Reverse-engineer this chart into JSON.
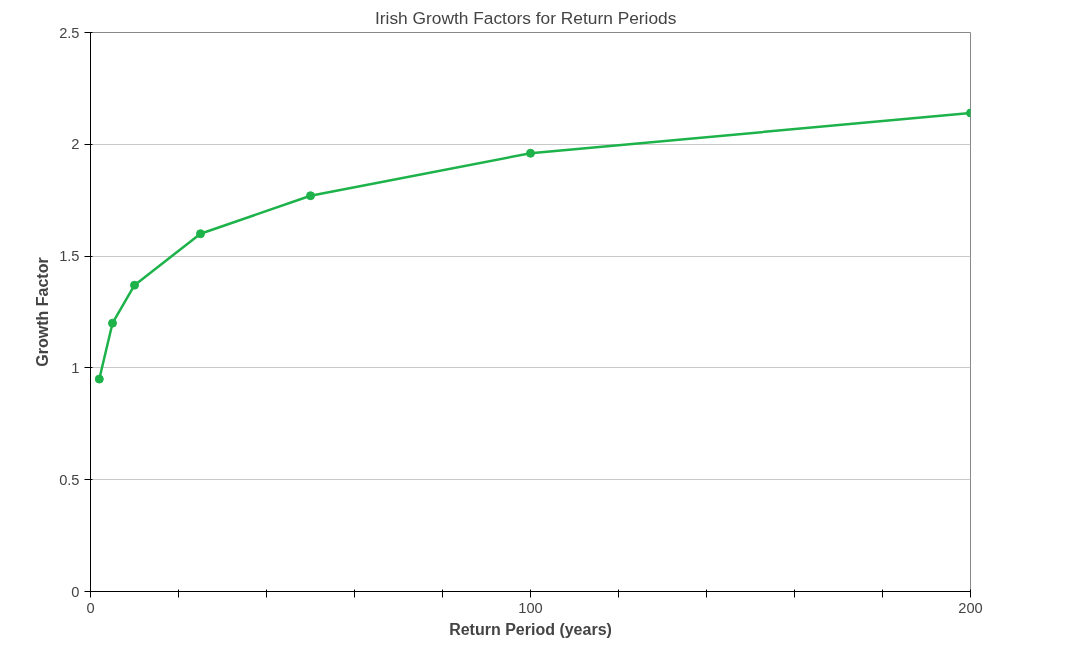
{
  "chart_data": {
    "type": "line",
    "title": "Irish Growth Factors  for  Return Periods",
    "xlabel": "Return Period (years)",
    "ylabel": "Growth Factor",
    "x": [
      2,
      5,
      10,
      25,
      50,
      100,
      200
    ],
    "series": [
      {
        "color": "#1db34a",
        "values": [
          0.95,
          1.2,
          1.37,
          1.6,
          1.77,
          1.96,
          2.14
        ]
      }
    ],
    "xlim": [
      0,
      200
    ],
    "xticks": [
      0,
      {
        "value": 20,
        "label": null
      },
      {
        "value": 40,
        "label": null
      },
      {
        "value": 60,
        "label": null
      },
      {
        "value": 80,
        "label": null
      },
      100,
      {
        "value": 120,
        "label": null
      },
      {
        "value": 140,
        "label": null
      },
      {
        "value": 160,
        "label": null
      },
      {
        "value": 180,
        "label": null
      },
      200
    ],
    "ylim": [
      0,
      2.5
    ],
    "yticks": [
      0,
      0.5,
      1,
      1.5,
      2,
      2.5
    ],
    "grid": "y",
    "marker": "circle",
    "line_style": "solid"
  }
}
